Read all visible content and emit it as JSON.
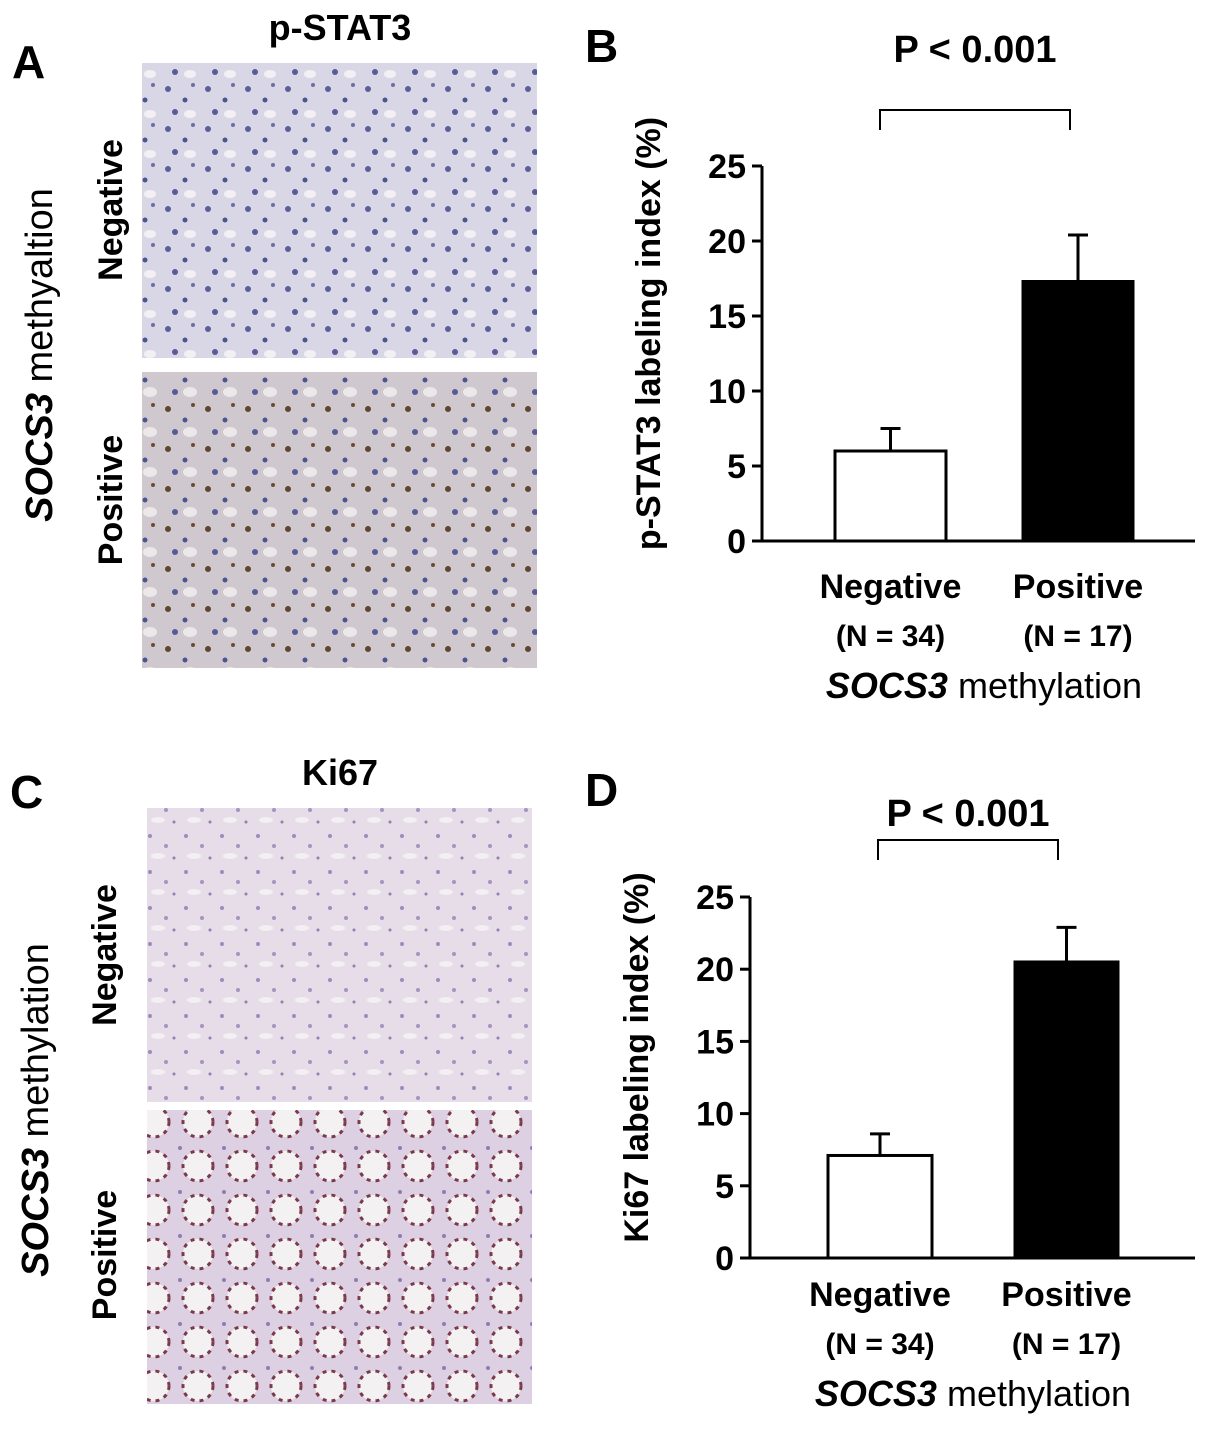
{
  "panels": [
    {
      "letter": "A",
      "title": "p-STAT3",
      "side_gene": "SOCS3",
      "side_text": "methyaltion",
      "rows": [
        "Negative",
        "Positive"
      ]
    },
    {
      "letter": "C",
      "title": "Ki67",
      "side_gene": "SOCS3",
      "side_text": "methylation",
      "rows": [
        "Negative",
        "Positive"
      ]
    }
  ],
  "chart_data": [
    {
      "type": "bar",
      "letter": "B",
      "annotation": "P < 0.001",
      "y_label": "p-STAT3 labeling index (%)",
      "categories": [
        "Negative",
        "Positive"
      ],
      "sublabels": [
        "(N = 34)",
        "(N = 17)"
      ],
      "x_label_gene": "SOCS3",
      "x_label_text": "methylation",
      "values": [
        6.0,
        17.3
      ],
      "errors": [
        1.5,
        3.1
      ],
      "colors": [
        "#ffffff",
        "#000000"
      ],
      "ylim": [
        0,
        25
      ],
      "yticks": [
        0,
        5,
        10,
        15,
        20,
        25
      ]
    },
    {
      "type": "bar",
      "letter": "D",
      "annotation": "P < 0.001",
      "y_label": "Ki67 labeling index (%)",
      "categories": [
        "Negative",
        "Positive"
      ],
      "sublabels": [
        "(N = 34)",
        "(N = 17)"
      ],
      "x_label_gene": "SOCS3",
      "x_label_text": "methylation",
      "values": [
        7.1,
        20.5
      ],
      "errors": [
        1.5,
        2.4
      ],
      "colors": [
        "#ffffff",
        "#000000"
      ],
      "ylim": [
        0,
        25
      ],
      "yticks": [
        0,
        5,
        10,
        15,
        20,
        25
      ]
    }
  ]
}
